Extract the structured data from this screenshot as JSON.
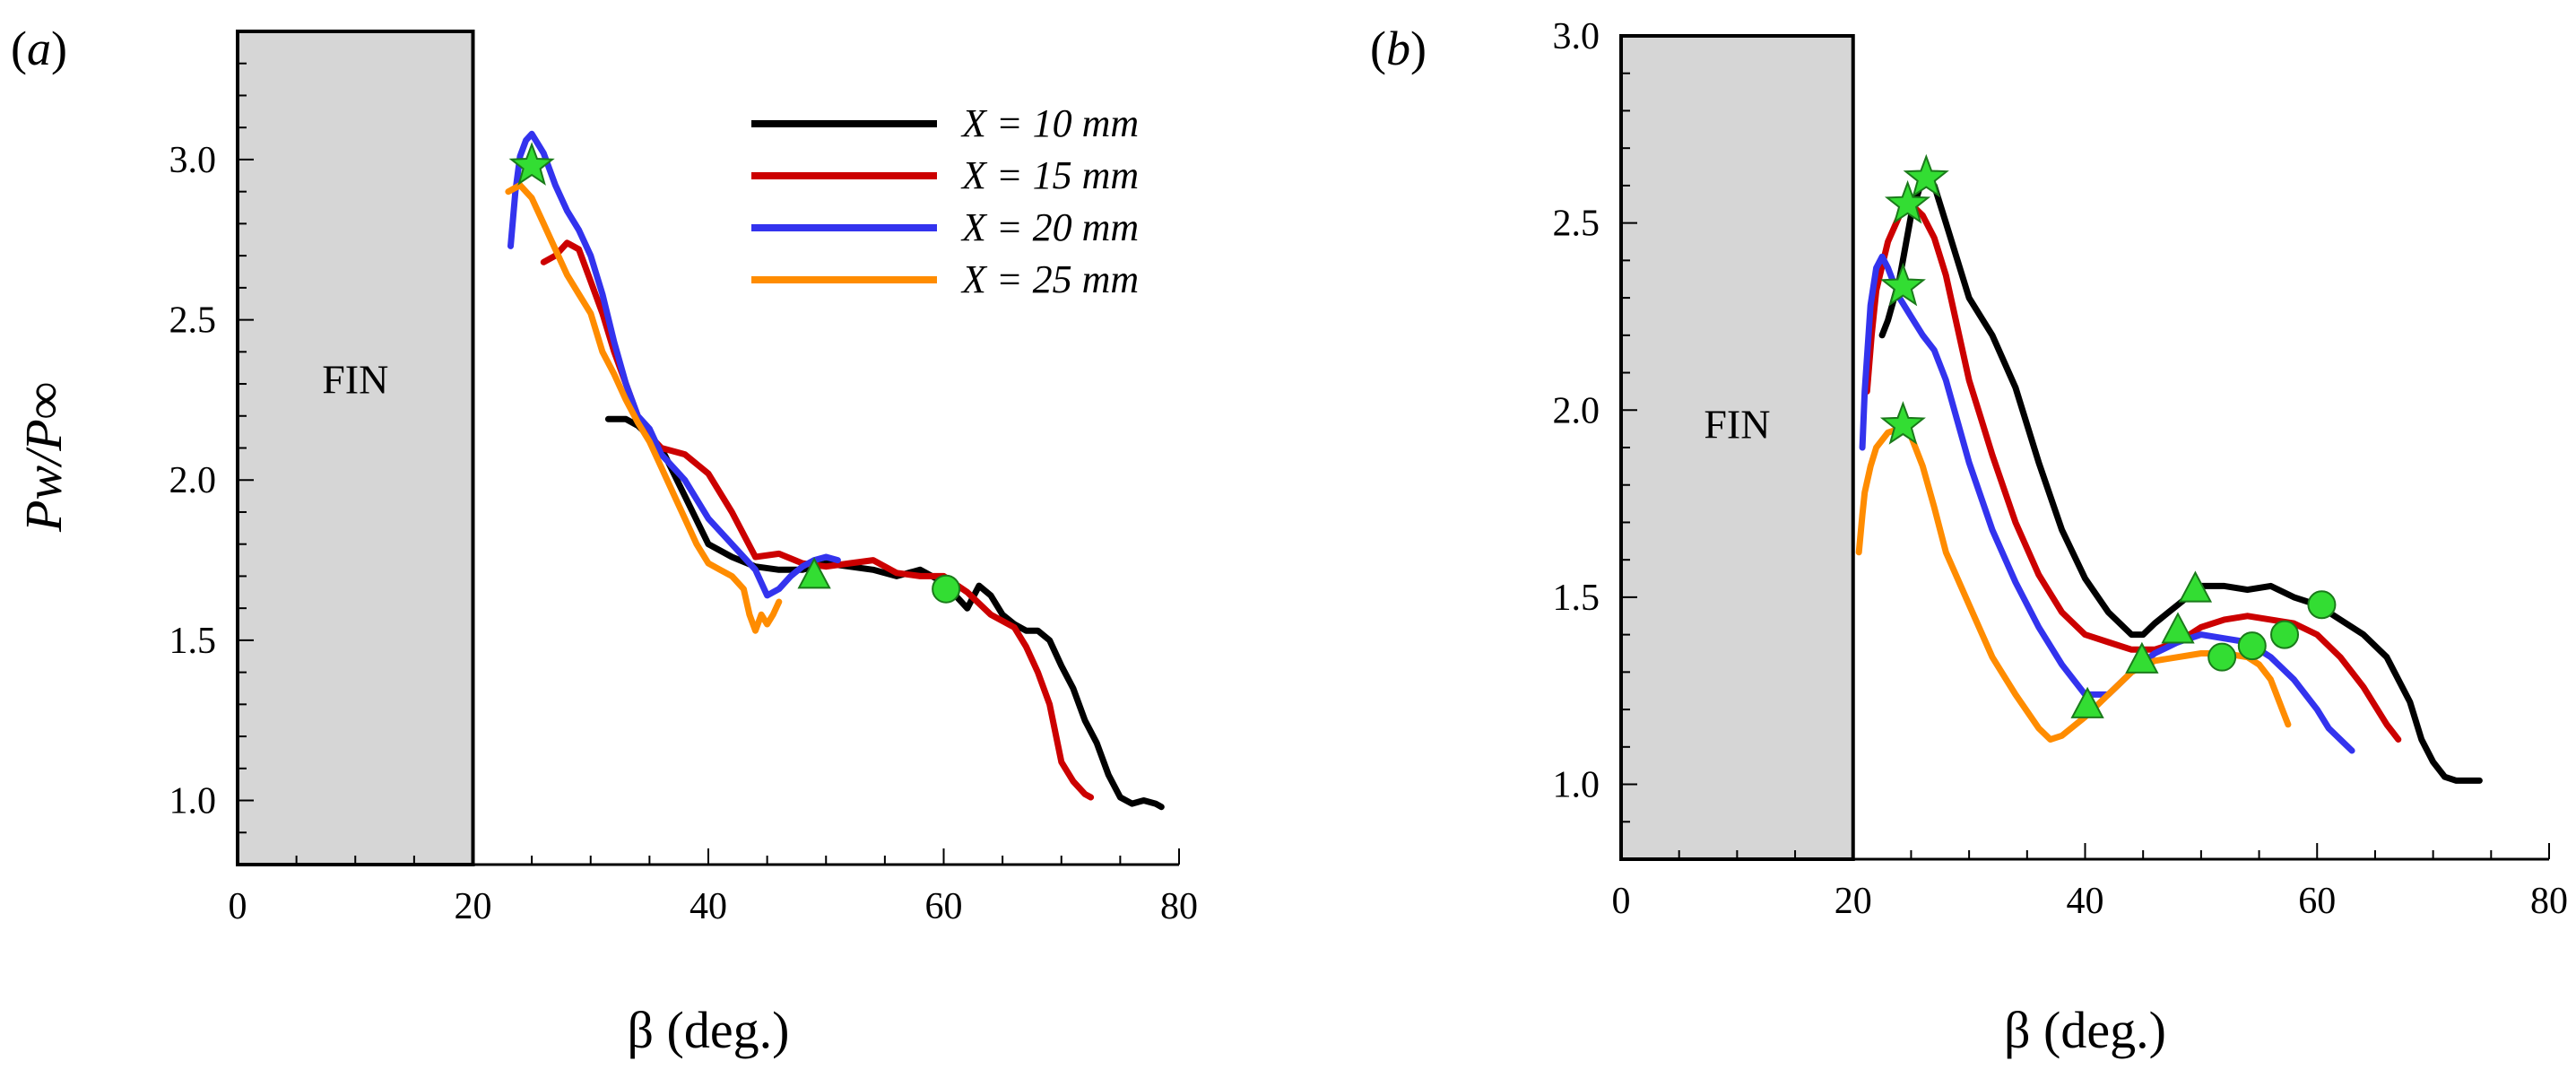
{
  "figure": {
    "panels": [
      {
        "id": "a",
        "label_open": "(",
        "label_letter": "a",
        "label_close": ")"
      },
      {
        "id": "b",
        "label_open": "(",
        "label_letter": "b",
        "label_close": ")"
      }
    ],
    "fin_label": "FIN",
    "xlabel": "β (deg.)",
    "ylabel": "Pw/P∞",
    "legend": [
      {
        "name": "X = 10 mm",
        "color": "#000000"
      },
      {
        "name": "X = 15 mm",
        "color": "#cc0000"
      },
      {
        "name": "X = 20 mm",
        "color": "#3333ee"
      },
      {
        "name": "X = 25 mm",
        "color": "#ff8c00"
      }
    ],
    "marker_color": "#33dd33"
  },
  "chart_data": [
    {
      "type": "line",
      "panel": "a",
      "xlim": [
        0,
        80
      ],
      "ylim": [
        0.8,
        3.4
      ],
      "xticks": [
        "0",
        "20",
        "40",
        "60",
        "80"
      ],
      "yticks": [
        "1.0",
        "1.5",
        "2.0",
        "2.5",
        "3.0"
      ],
      "fin_region": [
        0,
        20
      ],
      "xlabel": "β (deg.)",
      "ylabel": "Pw/P∞",
      "series": [
        {
          "name": "X = 10 mm",
          "color": "#000000",
          "x": [
            31.5,
            33,
            34,
            36,
            38,
            40,
            42,
            44,
            46,
            48,
            50,
            52,
            54,
            56,
            58,
            60,
            62,
            63,
            64,
            65,
            66,
            67,
            68,
            69,
            70,
            71,
            72,
            73,
            74,
            75,
            76,
            77,
            78,
            78.5
          ],
          "y": [
            2.19,
            2.19,
            2.17,
            2.1,
            1.95,
            1.8,
            1.76,
            1.73,
            1.72,
            1.72,
            1.74,
            1.73,
            1.72,
            1.7,
            1.72,
            1.68,
            1.6,
            1.67,
            1.64,
            1.58,
            1.55,
            1.53,
            1.53,
            1.5,
            1.42,
            1.35,
            1.25,
            1.18,
            1.08,
            1.01,
            0.99,
            1.0,
            0.99,
            0.98
          ]
        },
        {
          "name": "X = 15 mm",
          "color": "#cc0000",
          "x": [
            26,
            27,
            28,
            29,
            30,
            31,
            32,
            33,
            34,
            35,
            36,
            38,
            40,
            42,
            44,
            46,
            48,
            50,
            52,
            54,
            56,
            58,
            60,
            62,
            64,
            66,
            67,
            68,
            69,
            70,
            71,
            72,
            72.5
          ],
          "y": [
            2.68,
            2.7,
            2.74,
            2.72,
            2.62,
            2.52,
            2.4,
            2.3,
            2.2,
            2.14,
            2.1,
            2.08,
            2.02,
            1.9,
            1.76,
            1.77,
            1.74,
            1.73,
            1.74,
            1.75,
            1.71,
            1.7,
            1.7,
            1.65,
            1.58,
            1.54,
            1.48,
            1.4,
            1.3,
            1.12,
            1.06,
            1.02,
            1.01
          ]
        },
        {
          "name": "X = 20 mm",
          "color": "#3333ee",
          "x": [
            23.2,
            23.6,
            24,
            24.5,
            25,
            26,
            27,
            28,
            29,
            30,
            31,
            32,
            33,
            34,
            35,
            36,
            38,
            40,
            42,
            43,
            44,
            45,
            46,
            47,
            48,
            49,
            50,
            51
          ],
          "y": [
            2.73,
            2.9,
            3.01,
            3.06,
            3.08,
            3.02,
            2.92,
            2.84,
            2.78,
            2.7,
            2.58,
            2.43,
            2.3,
            2.2,
            2.16,
            2.08,
            2.0,
            1.88,
            1.8,
            1.76,
            1.72,
            1.64,
            1.66,
            1.7,
            1.73,
            1.75,
            1.76,
            1.75
          ]
        },
        {
          "name": "X = 25 mm",
          "color": "#ff8c00",
          "x": [
            23,
            24,
            25,
            26,
            27,
            28,
            29,
            30,
            31,
            32,
            33,
            34,
            35,
            36,
            37,
            38,
            39,
            40,
            41,
            42,
            43,
            43.5,
            44,
            44.5,
            45,
            45.5,
            46
          ],
          "y": [
            2.9,
            2.92,
            2.88,
            2.8,
            2.72,
            2.64,
            2.58,
            2.52,
            2.4,
            2.33,
            2.25,
            2.18,
            2.12,
            2.04,
            1.96,
            1.88,
            1.8,
            1.74,
            1.72,
            1.7,
            1.66,
            1.58,
            1.53,
            1.58,
            1.55,
            1.58,
            1.62
          ]
        }
      ],
      "markers": [
        {
          "shape": "star",
          "x": 25,
          "y": 2.98
        },
        {
          "shape": "triangle",
          "x": 49,
          "y": 1.7
        },
        {
          "shape": "circle",
          "x": 60.2,
          "y": 1.66
        }
      ]
    },
    {
      "type": "line",
      "panel": "b",
      "xlim": [
        0,
        80
      ],
      "ylim": [
        0.8,
        3.0
      ],
      "xticks": [
        "0",
        "20",
        "40",
        "60",
        "80"
      ],
      "yticks": [
        "1.0",
        "1.5",
        "2.0",
        "2.5",
        "3.0"
      ],
      "fin_region": [
        0,
        20
      ],
      "xlabel": "β (deg.)",
      "ylabel": "",
      "series": [
        {
          "name": "X = 10 mm",
          "color": "#000000",
          "x": [
            22.5,
            23,
            24,
            25,
            26,
            27,
            28,
            30,
            32,
            34,
            36,
            38,
            40,
            42,
            44,
            45,
            46,
            48,
            50,
            52,
            54,
            56,
            58,
            60,
            62,
            64,
            66,
            68,
            69,
            70,
            71,
            72,
            73,
            74
          ],
          "y": [
            2.2,
            2.24,
            2.35,
            2.52,
            2.62,
            2.6,
            2.5,
            2.3,
            2.2,
            2.06,
            1.86,
            1.68,
            1.55,
            1.46,
            1.4,
            1.4,
            1.43,
            1.48,
            1.53,
            1.53,
            1.52,
            1.53,
            1.5,
            1.48,
            1.44,
            1.4,
            1.34,
            1.22,
            1.12,
            1.06,
            1.02,
            1.01,
            1.01,
            1.01
          ]
        },
        {
          "name": "X = 15 mm",
          "color": "#cc0000",
          "x": [
            21.2,
            21.6,
            22,
            23,
            24,
            25,
            26,
            27,
            28,
            29,
            30,
            31,
            32,
            34,
            36,
            38,
            40,
            42,
            44,
            46,
            48,
            50,
            52,
            54,
            56,
            58,
            60,
            62,
            64,
            66,
            67
          ],
          "y": [
            2.05,
            2.2,
            2.32,
            2.45,
            2.52,
            2.55,
            2.52,
            2.46,
            2.36,
            2.22,
            2.08,
            1.98,
            1.88,
            1.7,
            1.56,
            1.46,
            1.4,
            1.38,
            1.36,
            1.36,
            1.38,
            1.42,
            1.44,
            1.45,
            1.44,
            1.43,
            1.4,
            1.34,
            1.26,
            1.16,
            1.12
          ]
        },
        {
          "name": "X = 20 mm",
          "color": "#3333ee",
          "x": [
            20.8,
            21,
            21.5,
            22,
            22.5,
            23,
            24,
            25,
            26,
            27,
            28,
            30,
            32,
            34,
            36,
            38,
            40,
            42,
            44,
            46,
            48,
            50,
            52,
            54,
            56,
            58,
            60,
            61,
            62,
            63
          ],
          "y": [
            1.9,
            2.05,
            2.28,
            2.38,
            2.41,
            2.38,
            2.3,
            2.25,
            2.2,
            2.16,
            2.08,
            1.86,
            1.68,
            1.54,
            1.42,
            1.32,
            1.24,
            1.24,
            1.3,
            1.35,
            1.38,
            1.4,
            1.39,
            1.38,
            1.34,
            1.28,
            1.2,
            1.15,
            1.12,
            1.09
          ]
        },
        {
          "name": "X = 25 mm",
          "color": "#ff8c00",
          "x": [
            20.5,
            20.8,
            21,
            21.5,
            22,
            23,
            24,
            25,
            26,
            27,
            28,
            30,
            32,
            34,
            36,
            37,
            38,
            40,
            42,
            44,
            46,
            48,
            50,
            52,
            54,
            55,
            56,
            57,
            57.5
          ],
          "y": [
            1.62,
            1.72,
            1.78,
            1.85,
            1.9,
            1.94,
            1.95,
            1.93,
            1.85,
            1.74,
            1.62,
            1.48,
            1.34,
            1.24,
            1.15,
            1.12,
            1.13,
            1.18,
            1.24,
            1.3,
            1.33,
            1.34,
            1.35,
            1.35,
            1.34,
            1.32,
            1.28,
            1.2,
            1.16
          ]
        }
      ],
      "markers": [
        {
          "shape": "star",
          "x": 26.3,
          "y": 2.62
        },
        {
          "shape": "star",
          "x": 24.7,
          "y": 2.55
        },
        {
          "shape": "star",
          "x": 24.3,
          "y": 2.33
        },
        {
          "shape": "star",
          "x": 24.3,
          "y": 1.96
        },
        {
          "shape": "triangle",
          "x": 49.5,
          "y": 1.52
        },
        {
          "shape": "triangle",
          "x": 48,
          "y": 1.41
        },
        {
          "shape": "triangle",
          "x": 44.9,
          "y": 1.33
        },
        {
          "shape": "triangle",
          "x": 40.2,
          "y": 1.21
        },
        {
          "shape": "circle",
          "x": 60.4,
          "y": 1.48
        },
        {
          "shape": "circle",
          "x": 57.2,
          "y": 1.4
        },
        {
          "shape": "circle",
          "x": 54.4,
          "y": 1.37
        },
        {
          "shape": "circle",
          "x": 51.8,
          "y": 1.34
        }
      ]
    }
  ]
}
